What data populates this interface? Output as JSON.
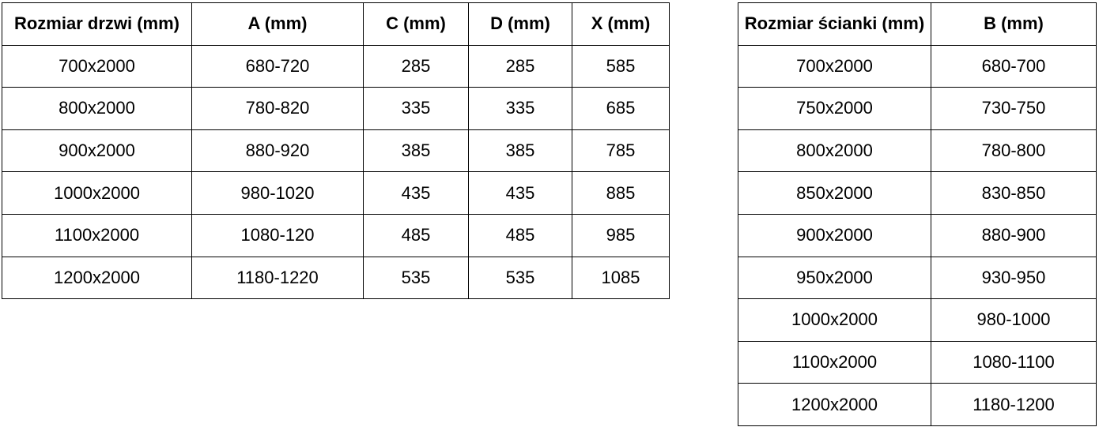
{
  "colors": {
    "background": "#ffffff",
    "border": "#000000",
    "text": "#000000"
  },
  "tables": {
    "doors": {
      "title": "Rozmiar drzwi (mm)",
      "headers": [
        "Rozmiar drzwi (mm)",
        "A (mm)",
        "C (mm)",
        "D (mm)",
        "X (mm)"
      ],
      "rows": [
        [
          "700x2000",
          "680-720",
          "285",
          "285",
          "585"
        ],
        [
          "800x2000",
          "780-820",
          "335",
          "335",
          "685"
        ],
        [
          "900x2000",
          "880-920",
          "385",
          "385",
          "785"
        ],
        [
          "1000x2000",
          "980-1020",
          "435",
          "435",
          "885"
        ],
        [
          "1100x2000",
          "1080-120",
          "485",
          "485",
          "985"
        ],
        [
          "1200x2000",
          "1180-1220",
          "535",
          "535",
          "1085"
        ]
      ]
    },
    "walls": {
      "title": "Rozmiar ścianki (mm)",
      "headers": [
        "Rozmiar ścianki (mm)",
        "B (mm)"
      ],
      "rows": [
        [
          "700x2000",
          "680-700"
        ],
        [
          "750x2000",
          "730-750"
        ],
        [
          "800x2000",
          "780-800"
        ],
        [
          "850x2000",
          "830-850"
        ],
        [
          "900x2000",
          "880-900"
        ],
        [
          "950x2000",
          "930-950"
        ],
        [
          "1000x2000",
          "980-1000"
        ],
        [
          "1100x2000",
          "1080-1100"
        ],
        [
          "1200x2000",
          "1180-1200"
        ]
      ]
    }
  }
}
